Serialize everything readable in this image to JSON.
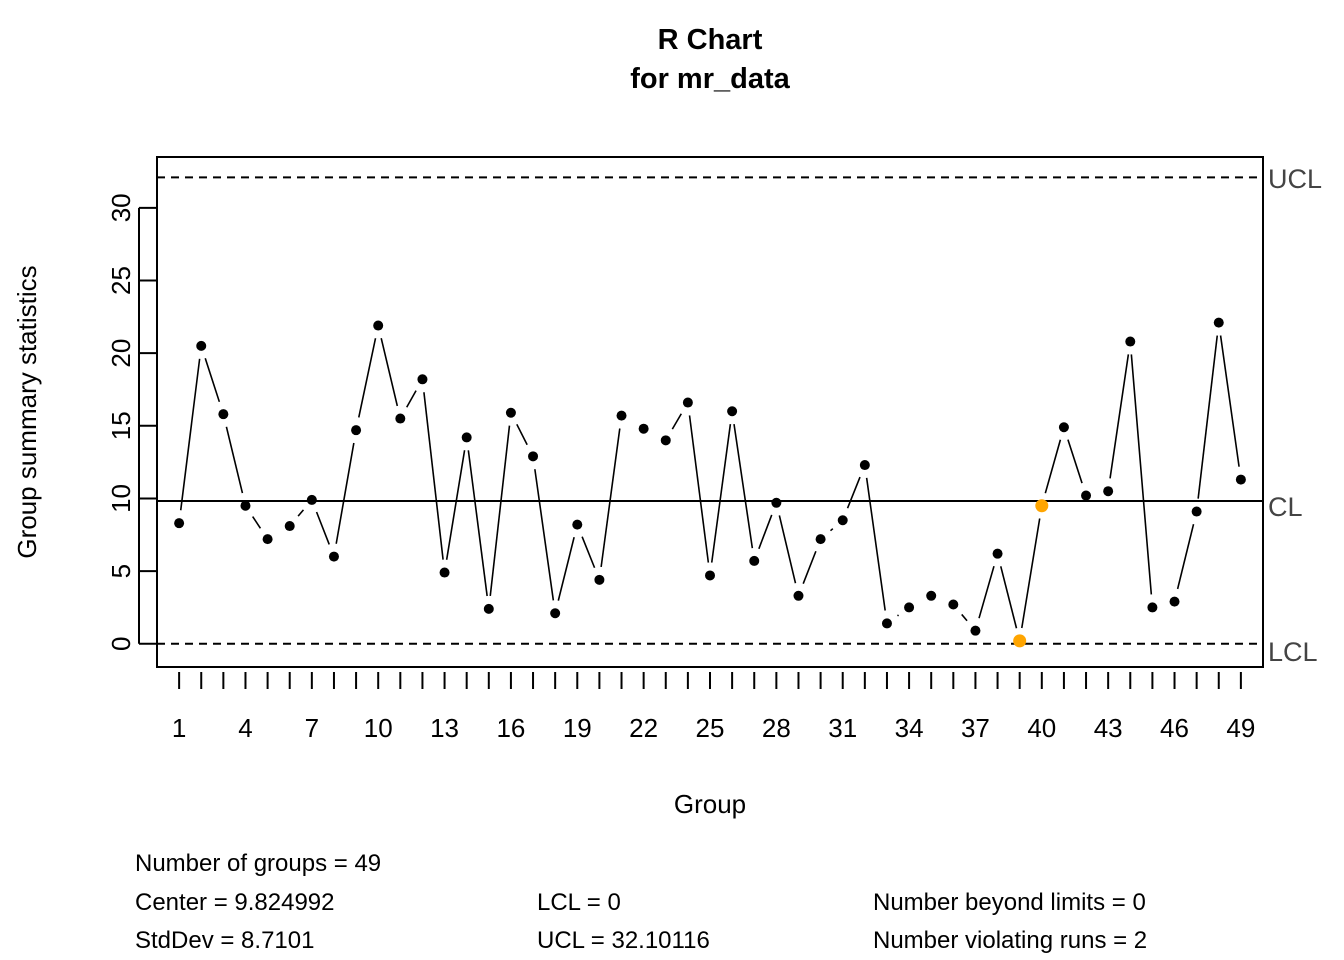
{
  "chart_data": {
    "type": "line",
    "title": "R Chart",
    "subtitle": "for mr_data",
    "xlabel": "Group",
    "ylabel": "Group summary statistics",
    "xlim": [
      0,
      50
    ],
    "ylim": [
      -1.6,
      33.5
    ],
    "yticks": [
      0,
      5,
      10,
      15,
      20,
      25,
      30
    ],
    "xticks_labeled": [
      1,
      4,
      7,
      10,
      13,
      16,
      19,
      22,
      25,
      28,
      31,
      34,
      37,
      40,
      43,
      46,
      49
    ],
    "x": [
      1,
      2,
      3,
      4,
      5,
      6,
      7,
      8,
      9,
      10,
      11,
      12,
      13,
      14,
      15,
      16,
      17,
      18,
      19,
      20,
      21,
      22,
      23,
      24,
      25,
      26,
      27,
      28,
      29,
      30,
      31,
      32,
      33,
      34,
      35,
      36,
      37,
      38,
      39,
      40,
      41,
      42,
      43,
      44,
      45,
      46,
      47,
      48,
      49
    ],
    "values": [
      8.3,
      20.5,
      15.8,
      9.5,
      7.2,
      8.1,
      9.9,
      6.0,
      14.7,
      21.9,
      15.5,
      18.2,
      4.9,
      14.2,
      2.4,
      15.9,
      12.9,
      2.1,
      8.2,
      4.4,
      15.7,
      14.8,
      14.0,
      16.6,
      4.7,
      16.0,
      5.7,
      9.7,
      3.3,
      7.2,
      8.5,
      12.3,
      1.4,
      2.5,
      3.3,
      2.7,
      0.9,
      6.2,
      0.2,
      9.5,
      14.9,
      10.2,
      10.5,
      20.8,
      2.5,
      2.9,
      9.1,
      22.1,
      11.3
    ],
    "violating_runs_groups": [
      39,
      40
    ],
    "center_line": 9.824992,
    "ucl": 32.10116,
    "lcl": 0,
    "limit_labels": {
      "ucl": "UCL",
      "cl": "CL",
      "lcl": "LCL"
    },
    "colors": {
      "points": "#000000",
      "violation": "#FFA500",
      "lines": "#000000",
      "limit_label": "#444444"
    },
    "legend": "none",
    "grid": false
  },
  "stats": {
    "groups": "Number of groups = 49",
    "center": "Center = 9.824992",
    "stddev": "StdDev = 8.7101",
    "lcl": "LCL = 0",
    "ucl": "UCL = 32.10116",
    "beyond": "Number beyond limits = 0",
    "runs": "Number violating runs = 2"
  }
}
